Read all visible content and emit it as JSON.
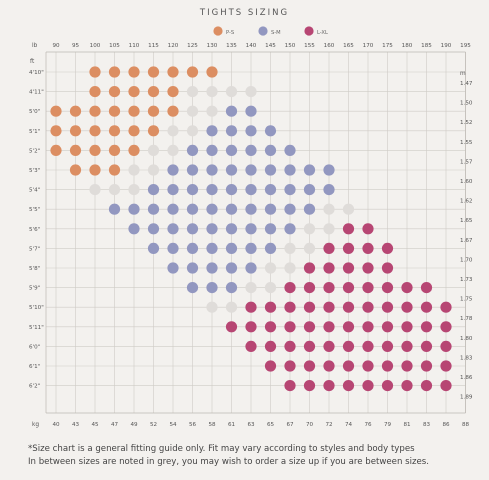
{
  "title": "TIGHTS SIZING",
  "footnote_line1": "*Size chart is a general fitting guide only. Fit may vary according to styles and body types",
  "footnote_line2": "In between sizes are noted in grey, you may wish to order a size up if you are between sizes.",
  "chart_data": {
    "type": "scatter",
    "legend": [
      {
        "key": "PS",
        "label": "P-S",
        "color": "#dc8e62"
      },
      {
        "key": "SM",
        "label": "S-M",
        "color": "#9297c0"
      },
      {
        "key": "LXL",
        "label": "L-XL",
        "color": "#b74673"
      },
      {
        "key": "between",
        "color": "#dfdcd9"
      }
    ],
    "x_label_lb": "lb",
    "x_label_kg": "kg",
    "y_label_ft": "ft",
    "y_label_m": "m",
    "x_lb_ticks": [
      "90",
      "95",
      "100",
      "105",
      "110",
      "115",
      "120",
      "125",
      "130",
      "135",
      "140",
      "145",
      "150",
      "155",
      "160",
      "165",
      "170",
      "175",
      "180",
      "185",
      "190",
      "195"
    ],
    "x_kg_ticks": [
      "40",
      "43",
      "45",
      "47",
      "49",
      "52",
      "54",
      "56",
      "58",
      "61",
      "63",
      "65",
      "67",
      "70",
      "72",
      "74",
      "76",
      "79",
      "81",
      "83",
      "86",
      "88"
    ],
    "y_ft_ticks": [
      "4'10\"",
      "4'11\"",
      "5'0\"",
      "5'1\"",
      "5'2\"",
      "5'3\"",
      "5'4\"",
      "5'5\"",
      "5'6\"",
      "5'7\"",
      "5'8\"",
      "5'9\"",
      "5'10\"",
      "5'11\"",
      "6'0\"",
      "6'1\"",
      "6'2\""
    ],
    "y_m_ticks": [
      "1.47",
      "1.50",
      "1.52",
      "1.55",
      "1.57",
      "1.60",
      "1.62",
      "1.65",
      "1.67",
      "1.70",
      "1.73",
      "1.75",
      "1.78",
      "1.80",
      "1.83",
      "1.86",
      "1.89"
    ],
    "rows": [
      {
        "height": "4'10\"",
        "weights_lb_from": 100,
        "sizes": [
          "PS",
          "PS",
          "PS",
          "PS",
          "PS",
          "PS",
          "PS"
        ]
      },
      {
        "height": "4'11\"",
        "weights_lb_from": 100,
        "sizes": [
          "PS",
          "PS",
          "PS",
          "PS",
          "PS",
          "between",
          "between",
          "between",
          "between"
        ]
      },
      {
        "height": "5'0\"",
        "weights_lb_from": 90,
        "sizes": [
          "PS",
          "PS",
          "PS",
          "PS",
          "PS",
          "PS",
          "PS",
          "between",
          "between",
          "SM",
          "SM"
        ]
      },
      {
        "height": "5'1\"",
        "weights_lb_from": 90,
        "sizes": [
          "PS",
          "PS",
          "PS",
          "PS",
          "PS",
          "PS",
          "between",
          "between",
          "SM",
          "SM",
          "SM",
          "SM"
        ]
      },
      {
        "height": "5'2\"",
        "weights_lb_from": 90,
        "sizes": [
          "PS",
          "PS",
          "PS",
          "PS",
          "PS",
          "between",
          "between",
          "SM",
          "SM",
          "SM",
          "SM",
          "SM",
          "SM"
        ]
      },
      {
        "height": "5'3\"",
        "weights_lb_from": 95,
        "sizes": [
          "PS",
          "PS",
          "PS",
          "between",
          "between",
          "SM",
          "SM",
          "SM",
          "SM",
          "SM",
          "SM",
          "SM",
          "SM",
          "SM"
        ]
      },
      {
        "height": "5'4\"",
        "weights_lb_from": 100,
        "sizes": [
          "between",
          "between",
          "between",
          "SM",
          "SM",
          "SM",
          "SM",
          "SM",
          "SM",
          "SM",
          "SM",
          "SM",
          "SM"
        ]
      },
      {
        "height": "5'5\"",
        "weights_lb_from": 105,
        "sizes": [
          "SM",
          "SM",
          "SM",
          "SM",
          "SM",
          "SM",
          "SM",
          "SM",
          "SM",
          "SM",
          "SM",
          "between",
          "between"
        ]
      },
      {
        "height": "5'6\"",
        "weights_lb_from": 110,
        "sizes": [
          "SM",
          "SM",
          "SM",
          "SM",
          "SM",
          "SM",
          "SM",
          "SM",
          "SM",
          "between",
          "between",
          "LXL",
          "LXL"
        ]
      },
      {
        "height": "5'7\"",
        "weights_lb_from": 115,
        "sizes": [
          "SM",
          "SM",
          "SM",
          "SM",
          "SM",
          "SM",
          "SM",
          "between",
          "between",
          "LXL",
          "LXL",
          "LXL",
          "LXL"
        ]
      },
      {
        "height": "5'8\"",
        "weights_lb_from": 120,
        "sizes": [
          "SM",
          "SM",
          "SM",
          "SM",
          "SM",
          "between",
          "between",
          "LXL",
          "LXL",
          "LXL",
          "LXL",
          "LXL"
        ]
      },
      {
        "height": "5'9\"",
        "weights_lb_from": 125,
        "sizes": [
          "SM",
          "SM",
          "SM",
          "between",
          "between",
          "LXL",
          "LXL",
          "LXL",
          "LXL",
          "LXL",
          "LXL",
          "LXL",
          "LXL"
        ]
      },
      {
        "height": "5'10\"",
        "weights_lb_from": 130,
        "sizes": [
          "between",
          "between",
          "LXL",
          "LXL",
          "LXL",
          "LXL",
          "LXL",
          "LXL",
          "LXL",
          "LXL",
          "LXL",
          "LXL",
          "LXL"
        ]
      },
      {
        "height": "5'11\"",
        "weights_lb_from": 135,
        "sizes": [
          "LXL",
          "LXL",
          "LXL",
          "LXL",
          "LXL",
          "LXL",
          "LXL",
          "LXL",
          "LXL",
          "LXL",
          "LXL",
          "LXL"
        ]
      },
      {
        "height": "6'0\"",
        "weights_lb_from": 140,
        "sizes": [
          "LXL",
          "LXL",
          "LXL",
          "LXL",
          "LXL",
          "LXL",
          "LXL",
          "LXL",
          "LXL",
          "LXL",
          "LXL"
        ]
      },
      {
        "height": "6'1\"",
        "weights_lb_from": 145,
        "sizes": [
          "LXL",
          "LXL",
          "LXL",
          "LXL",
          "LXL",
          "LXL",
          "LXL",
          "LXL",
          "LXL",
          "LXL"
        ]
      },
      {
        "height": "6'2\"",
        "weights_lb_from": 150,
        "sizes": [
          "LXL",
          "LXL",
          "LXL",
          "LXL",
          "LXL",
          "LXL",
          "LXL",
          "LXL",
          "LXL"
        ]
      }
    ]
  }
}
